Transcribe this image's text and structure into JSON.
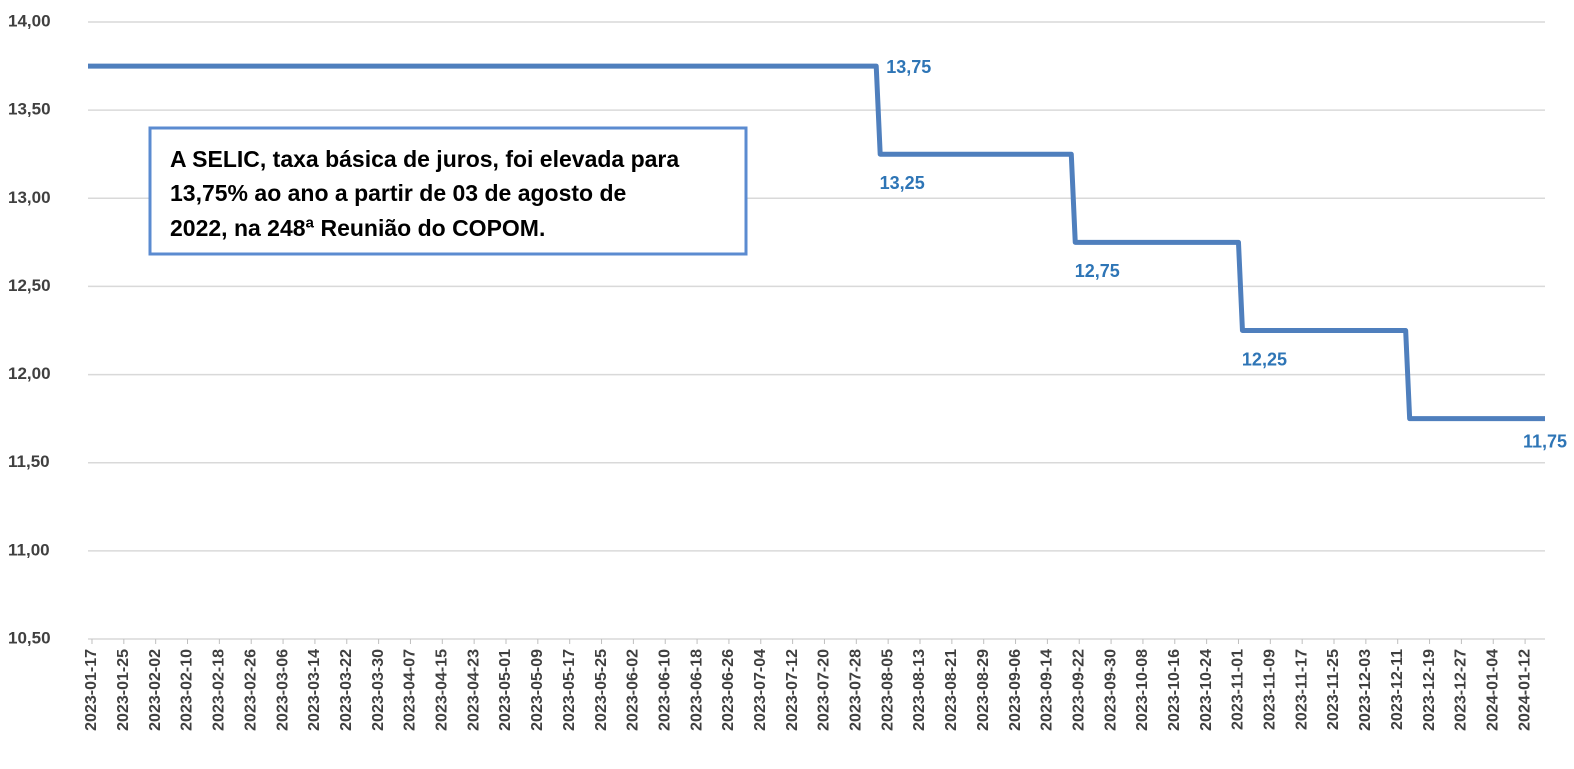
{
  "chart_data": {
    "type": "line",
    "annotation": [
      "A SELIC, taxa básica de juros, foi elevada para",
      "13,75% ao ano a partir de 03 de agosto de",
      "2022, na 248ª Reunião do COPOM."
    ],
    "x": [
      "2023-01-16",
      "2023-08-02",
      "2023-08-03",
      "2023-09-20",
      "2023-09-21",
      "2023-11-01",
      "2023-11-02",
      "2023-12-13",
      "2023-12-14",
      "2024-01-17"
    ],
    "series": [
      {
        "color": "#4f7fbd",
        "values": [
          13.75,
          13.75,
          13.25,
          13.25,
          12.75,
          12.75,
          12.25,
          12.25,
          11.75,
          11.75
        ],
        "value_labels": [
          null,
          "13,75",
          "13,25",
          null,
          "12,75",
          null,
          "12,25",
          null,
          null,
          "11,75"
        ],
        "label_color": "#2e75b6"
      }
    ],
    "xlim": [
      "2023-01-16",
      "2024-01-17"
    ],
    "xticks": [
      "2023-01-17",
      "2023-01-25",
      "2023-02-02",
      "2023-02-10",
      "2023-02-18",
      "2023-02-26",
      "2023-03-06",
      "2023-03-14",
      "2023-03-22",
      "2023-03-30",
      "2023-04-07",
      "2023-04-15",
      "2023-04-23",
      "2023-05-01",
      "2023-05-09",
      "2023-05-17",
      "2023-05-25",
      "2023-06-02",
      "2023-06-10",
      "2023-06-18",
      "2023-06-26",
      "2023-07-04",
      "2023-07-12",
      "2023-07-20",
      "2023-07-28",
      "2023-08-05",
      "2023-08-13",
      "2023-08-21",
      "2023-08-29",
      "2023-09-06",
      "2023-09-14",
      "2023-09-22",
      "2023-09-30",
      "2023-10-08",
      "2023-10-16",
      "2023-10-24",
      "2023-11-01",
      "2023-11-09",
      "2023-11-17",
      "2023-11-25",
      "2023-12-03",
      "2023-12-11",
      "2023-12-19",
      "2023-12-27",
      "2024-01-04",
      "2024-01-12"
    ],
    "ylim": [
      10.5,
      14
    ],
    "yticks": [
      {
        "value": 10.5,
        "label": "10,50"
      },
      {
        "value": 11,
        "label": "11,00"
      },
      {
        "value": 11.5,
        "label": "11,50"
      },
      {
        "value": 12,
        "label": "12,00"
      },
      {
        "value": 12.5,
        "label": "12,50"
      },
      {
        "value": 13,
        "label": "13,00"
      },
      {
        "value": 13.5,
        "label": "13,50"
      },
      {
        "value": 14,
        "label": "14,00"
      }
    ],
    "grid": true
  }
}
